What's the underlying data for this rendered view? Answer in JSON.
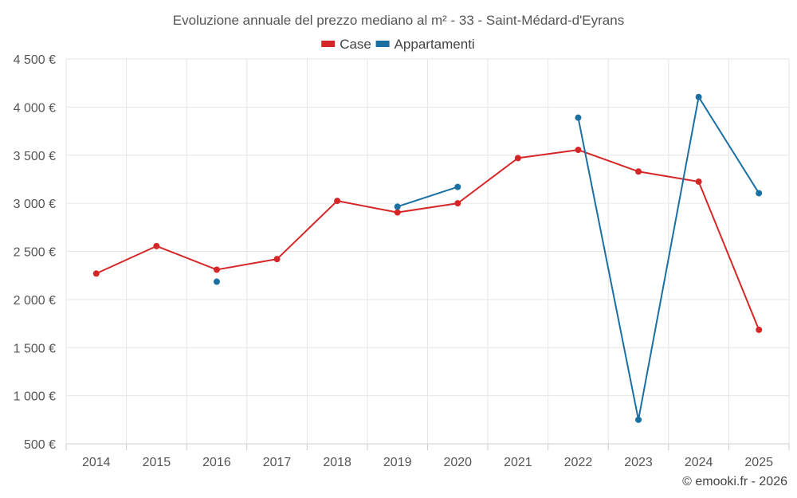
{
  "chart_data": {
    "type": "line",
    "title": "Evoluzione annuale del prezzo mediano al m² - 33 - Saint-Médard-d'Eyrans",
    "x": [
      "2014",
      "2015",
      "2016",
      "2017",
      "2018",
      "2019",
      "2020",
      "2021",
      "2022",
      "2023",
      "2024",
      "2025"
    ],
    "yticks": [
      500,
      1000,
      1500,
      2000,
      2500,
      3000,
      3500,
      4000,
      4500
    ],
    "ytick_labels": [
      "500 €",
      "1 000 €",
      "1 500 €",
      "2 000 €",
      "2 500 €",
      "3 000 €",
      "3 500 €",
      "4 000 €",
      "4 500 €"
    ],
    "ylim": [
      500,
      4500
    ],
    "grid": true,
    "legend_position": "top-center",
    "series": [
      {
        "name": "Case",
        "color": "#d62728",
        "values": [
          2270,
          2555,
          2310,
          2420,
          3025,
          2905,
          3000,
          3470,
          3555,
          3330,
          3225,
          1685
        ]
      },
      {
        "name": "Appartamenti",
        "color": "#1a6fa3",
        "values": [
          null,
          null,
          2185,
          null,
          null,
          2965,
          3170,
          null,
          3890,
          750,
          4105,
          3105
        ]
      }
    ]
  },
  "credit": "© emooki.fr - 2026"
}
